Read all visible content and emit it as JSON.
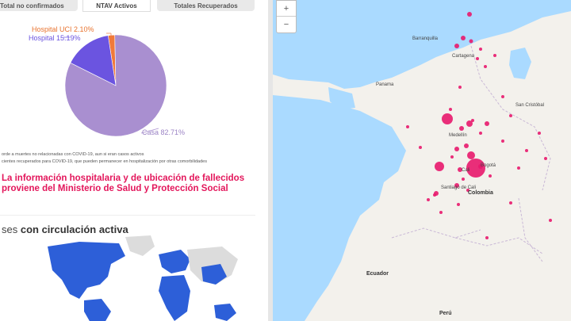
{
  "tabs": [
    {
      "label": "Total no confirmados"
    },
    {
      "label": "NTAV Activos"
    },
    {
      "label": "Totales Recuperados"
    }
  ],
  "pie": {
    "slices": [
      {
        "label": "Hospital UCI 2.10%",
        "value": 2.1,
        "color": "#f07a3a"
      },
      {
        "label": "Hospital 15.19%",
        "value": 15.19,
        "color": "#6b54e0"
      },
      {
        "label": "Casa 82.71%",
        "value": 82.71,
        "color": "#a98fd0"
      }
    ],
    "label_colors": {
      "uci": "#e8732f",
      "hospital": "#6b54e0",
      "casa": "#9a82c4"
    }
  },
  "footnotes": [
    "orde a muertes no relacionadas con COVID-19, aun si eran casos activos",
    "cientes recuperados para COVID-19, que pueden permanecer en hospitalización por otras comorbilidades"
  ],
  "source_text": {
    "line1": "La información hospitalaria y de ubicación de fallecidos",
    "line2": "proviene del Ministerio de Salud y Protección Social"
  },
  "section2": {
    "title_prefix": "ses ",
    "title_bold": "con circulación activa"
  },
  "map": {
    "zoom_in": "+",
    "zoom_out": "−",
    "cities": [
      "Barranquilla",
      "Cartagena",
      "Panama",
      "Medellín",
      "Bogotá",
      "Cali",
      "Santiago de Cali",
      "San Cristóbal"
    ],
    "countries": [
      "Colombia",
      "Ecuador",
      "Perú"
    ],
    "bubble_color": "#e8186d",
    "land_color": "#f3f1ec",
    "water_color": "#aadaff"
  }
}
